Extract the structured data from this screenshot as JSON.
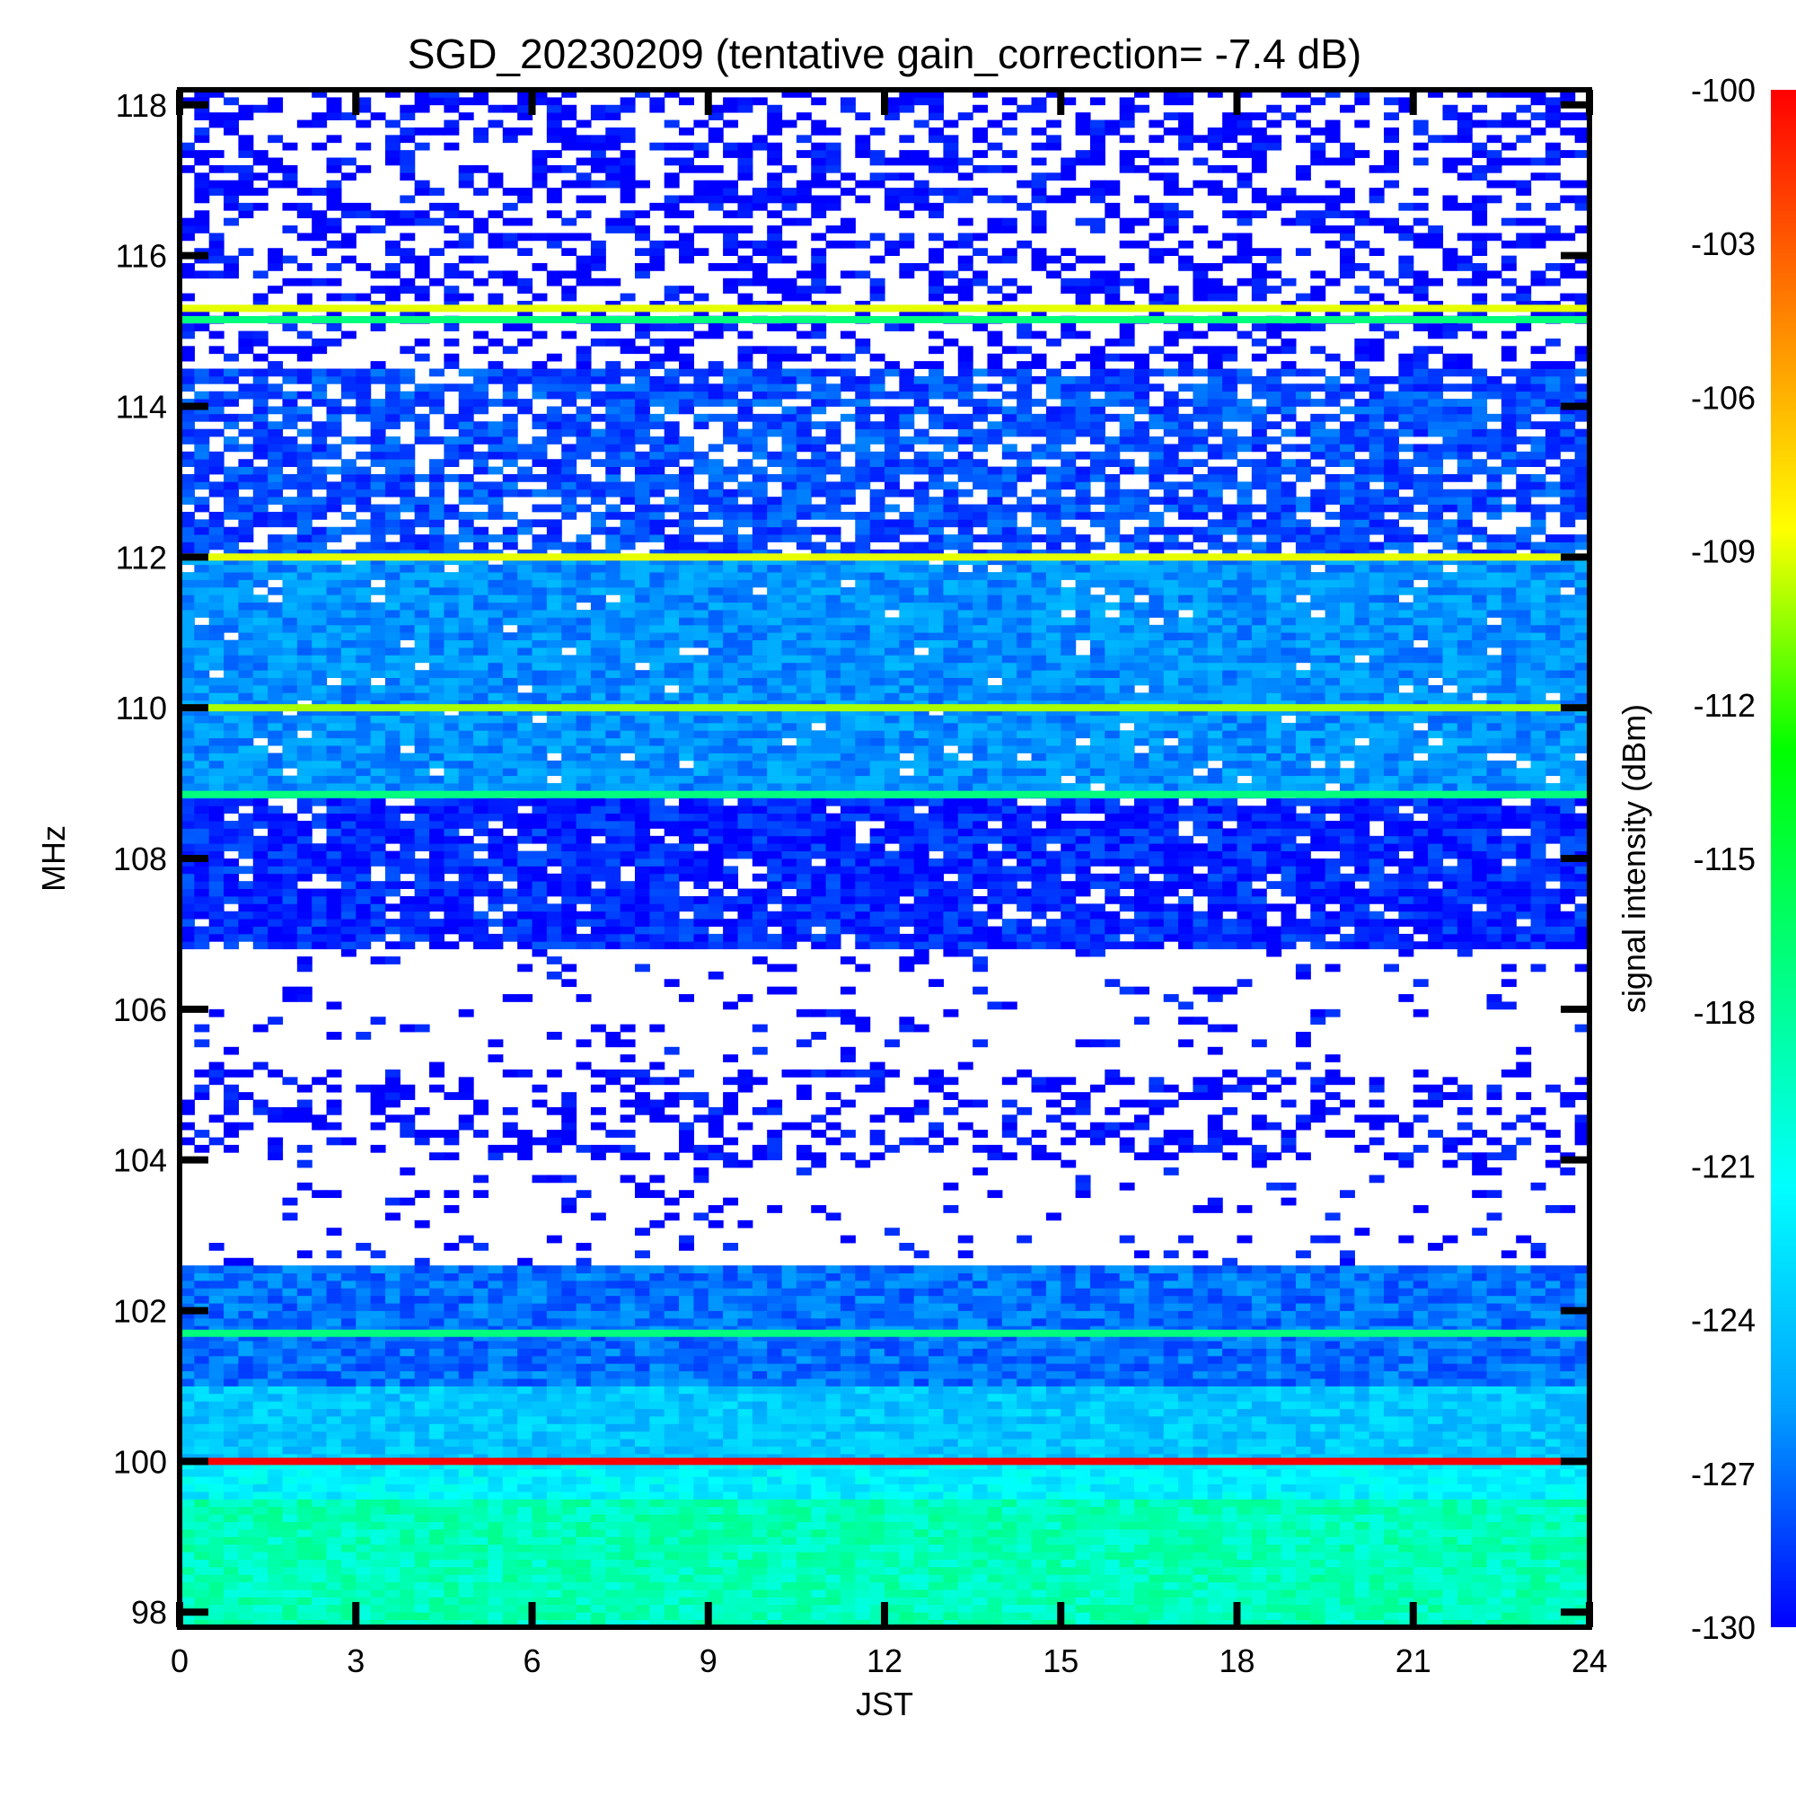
{
  "chart_data": {
    "type": "heatmap",
    "title": "SGD_20230209 (tentative gain_correction= -7.4 dB)",
    "xlabel": "JST",
    "ylabel": "MHz",
    "colorbar_label": "signal intensity (dBm)",
    "xlim": [
      0,
      24
    ],
    "ylim": [
      97.8,
      118.2
    ],
    "x_ticks": [
      "0",
      "3",
      "6",
      "9",
      "12",
      "15",
      "18",
      "21",
      "24"
    ],
    "y_ticks": [
      "98",
      "100",
      "102",
      "104",
      "106",
      "108",
      "110",
      "112",
      "114",
      "116",
      "118"
    ],
    "colorbar_range": [
      -130,
      -100
    ],
    "colorbar_ticks": [
      "-100",
      "-103",
      "-106",
      "-109",
      "-112",
      "-115",
      "-118",
      "-121",
      "-124",
      "-127",
      "-130"
    ],
    "colormap": [
      "#0000ff",
      "#00a0ff",
      "#00ffff",
      "#00ff80",
      "#00ff00",
      "#ffff00",
      "#ff8000",
      "#ff0000"
    ],
    "no_signal_color": "#ffffff",
    "strong_bands": [
      {
        "freq_mhz": 115.3,
        "level_dbm": -109
      },
      {
        "freq_mhz": 115.15,
        "level_dbm": -117
      },
      {
        "freq_mhz": 112.0,
        "level_dbm": -109
      },
      {
        "freq_mhz": 110.0,
        "level_dbm": -110
      },
      {
        "freq_mhz": 108.85,
        "level_dbm": -117
      },
      {
        "freq_mhz": 101.7,
        "level_dbm": -117
      },
      {
        "freq_mhz": 100.0,
        "level_dbm": -100
      }
    ],
    "regions": [
      {
        "freq_from_mhz": 97.8,
        "freq_to_mhz": 99.5,
        "level_dbm": -119,
        "fill": 1.0
      },
      {
        "freq_from_mhz": 99.5,
        "freq_to_mhz": 100.0,
        "level_dbm": -122,
        "fill": 1.0
      },
      {
        "freq_from_mhz": 100.0,
        "freq_to_mhz": 101.0,
        "level_dbm": -124,
        "fill": 1.0
      },
      {
        "freq_from_mhz": 101.0,
        "freq_to_mhz": 102.6,
        "level_dbm": -127,
        "fill": 1.0
      },
      {
        "freq_from_mhz": 102.6,
        "freq_to_mhz": 104.0,
        "level_dbm": -130,
        "fill": 0.1
      },
      {
        "freq_from_mhz": 104.0,
        "freq_to_mhz": 105.2,
        "level_dbm": -130,
        "fill": 0.35
      },
      {
        "freq_from_mhz": 105.2,
        "freq_to_mhz": 106.8,
        "level_dbm": -130,
        "fill": 0.08
      },
      {
        "freq_from_mhz": 106.8,
        "freq_to_mhz": 108.8,
        "level_dbm": -129,
        "fill": 0.9
      },
      {
        "freq_from_mhz": 108.8,
        "freq_to_mhz": 112.0,
        "level_dbm": -126,
        "fill": 0.97
      },
      {
        "freq_from_mhz": 112.0,
        "freq_to_mhz": 114.5,
        "level_dbm": -128,
        "fill": 0.75
      },
      {
        "freq_from_mhz": 114.5,
        "freq_to_mhz": 118.2,
        "level_dbm": -130,
        "fill": 0.4
      }
    ]
  }
}
